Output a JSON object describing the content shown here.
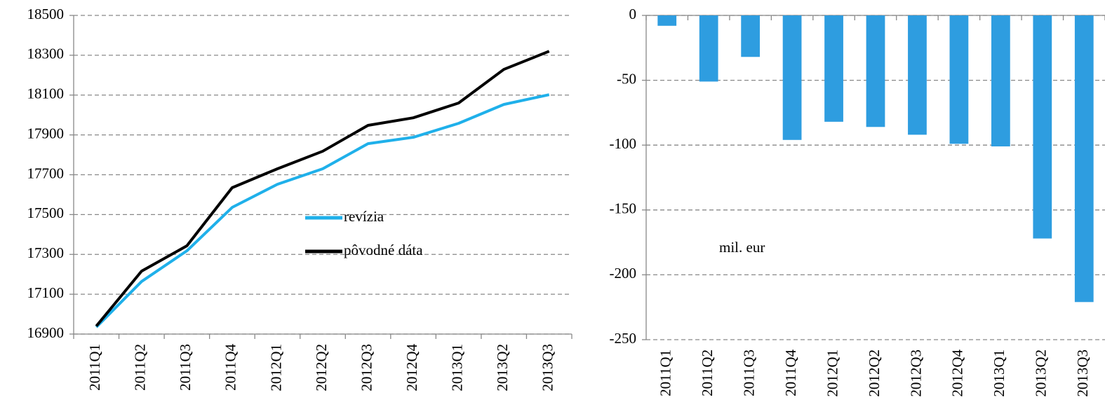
{
  "chart_data": [
    {
      "type": "line",
      "categories": [
        "2011Q1",
        "2011Q2",
        "2011Q3",
        "2011Q4",
        "2012Q1",
        "2012Q2",
        "2012Q3",
        "2012Q4",
        "2013Q1",
        "2013Q2",
        "2013Q3"
      ],
      "series": [
        {
          "name": "revízia",
          "color": "#1fb0ea",
          "values": [
            16935,
            17164,
            17318,
            17536,
            17652,
            17730,
            17856,
            17888,
            17958,
            18053,
            18102
          ]
        },
        {
          "name": "pôvodné dáta",
          "color": "#000000",
          "values": [
            16940,
            17216,
            17343,
            17635,
            17730,
            17818,
            17948,
            17986,
            18060,
            18229,
            18320
          ]
        }
      ],
      "ylim": [
        16900,
        18500
      ],
      "yticks": [
        16900,
        17100,
        17300,
        17500,
        17700,
        17900,
        18100,
        18300,
        18500
      ],
      "grid": true
    },
    {
      "type": "bar",
      "categories": [
        "2011Q1",
        "2011Q2",
        "2011Q3",
        "2011Q4",
        "2012Q1",
        "2012Q2",
        "2012Q3",
        "2012Q4",
        "2013Q1",
        "2013Q2",
        "2013Q3"
      ],
      "values": [
        -8,
        -51,
        -32,
        -96,
        -82,
        -86,
        -92,
        -99,
        -101,
        -172,
        -221
      ],
      "color": "#2e9de0",
      "annotation": "mil. eur",
      "ylim": [
        -250,
        0
      ],
      "yticks": [
        -250,
        -200,
        -150,
        -100,
        -50,
        0
      ],
      "grid": true
    }
  ]
}
